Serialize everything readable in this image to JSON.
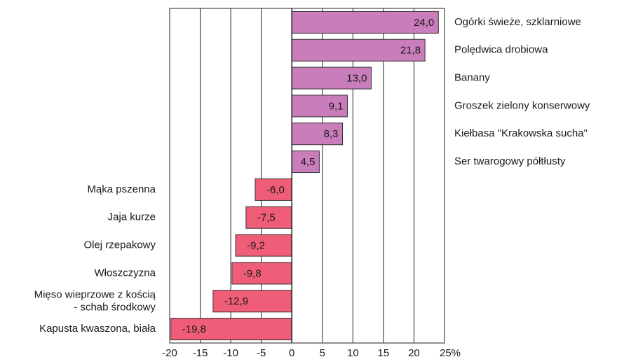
{
  "chart_data": {
    "type": "barh",
    "categories": [
      "Ogórki świeże, szklarniowe",
      "Polędwica drobiowa",
      "Banany",
      "Groszek zielony konserwowy",
      "Kiełbasa \"Krakowska sucha\"",
      "Ser twarogowy półtłusty",
      "Mąka pszenna",
      "Jaja kurze",
      "Olej rzepakowy",
      "Włoszczyzna",
      "Mięso wieprzowe z kością\n- schab środkowy",
      "Kapusta kwaszona, biała"
    ],
    "values": [
      24.0,
      21.8,
      13.0,
      9.1,
      8.3,
      4.5,
      -6.0,
      -7.5,
      -9.2,
      -9.8,
      -12.9,
      -19.8
    ],
    "value_labels": [
      "24,0",
      "21,8",
      "13,0",
      "9,1",
      "8,3",
      "4,5",
      "-6,0",
      "-7,5",
      "-9,2",
      "-9,8",
      "-12,9",
      "-19,8"
    ],
    "positive_color": "#c97dba",
    "negative_color": "#ef5d78",
    "xlim": [
      -20,
      25
    ],
    "xticks": [
      -20,
      -15,
      -10,
      -5,
      0,
      5,
      10,
      15,
      20,
      {
        "value": 25,
        "label": "25%"
      }
    ],
    "grid": true
  }
}
